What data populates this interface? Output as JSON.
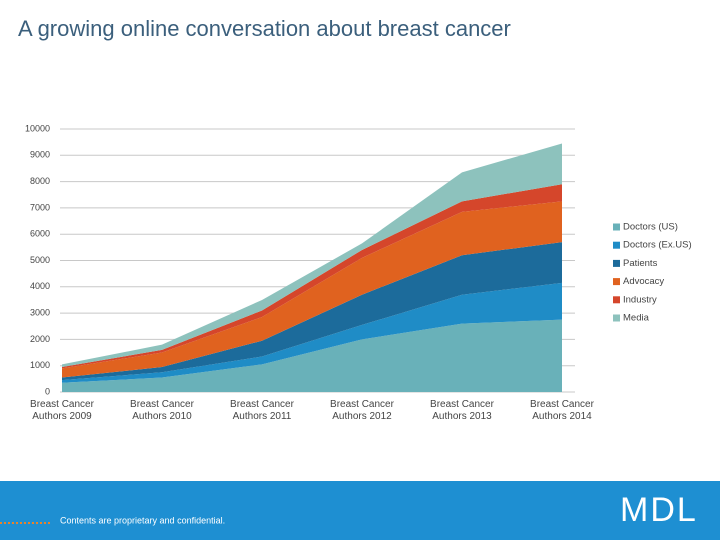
{
  "chart_data": {
    "type": "stacked_area",
    "title": "A growing online conversation about breast cancer",
    "categories": [
      "Breast Cancer Authors 2009",
      "Breast Cancer Authors 2010",
      "Breast Cancer Authors 2011",
      "Breast Cancer Authors 2012",
      "Breast Cancer Authors 2013",
      "Breast Cancer Authors 2014"
    ],
    "series": [
      {
        "name": "Doctors (US)",
        "color": "#69b1b9",
        "values": [
          350,
          550,
          1050,
          2000,
          2600,
          2750
        ]
      },
      {
        "name": "Doctors (Ex.US)",
        "color": "#1f8cc6",
        "values": [
          100,
          200,
          300,
          550,
          1100,
          1400
        ]
      },
      {
        "name": "Patients",
        "color": "#1c6b9b",
        "values": [
          100,
          200,
          600,
          1150,
          1500,
          1550
        ]
      },
      {
        "name": "Advocacy",
        "color": "#e0621f",
        "values": [
          350,
          550,
          900,
          1400,
          1650,
          1550
        ]
      },
      {
        "name": "Industry",
        "color": "#d5462b",
        "values": [
          50,
          100,
          250,
          300,
          400,
          650
        ]
      },
      {
        "name": "Media",
        "color": "#8dc2bd",
        "values": [
          100,
          200,
          400,
          250,
          1100,
          1550
        ]
      }
    ],
    "ylim": [
      0,
      10000
    ],
    "yticks": [
      0,
      1000,
      2000,
      3000,
      4000,
      5000,
      6000,
      7000,
      8000,
      9000,
      10000
    ],
    "grid": true,
    "legend": "right"
  },
  "footer": {
    "text": "Contents are proprietary and confidential.",
    "logo": "MDL"
  }
}
